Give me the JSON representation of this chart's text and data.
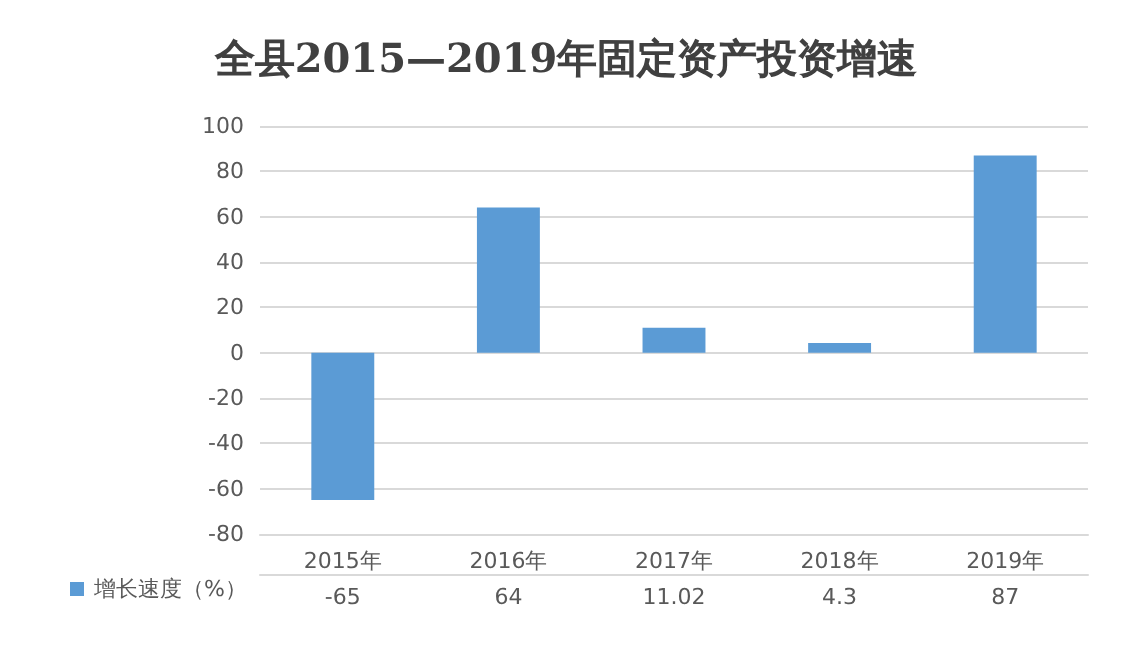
{
  "chart_data": {
    "type": "bar",
    "title": "全县2015—2019年固定资产投资增速",
    "categories": [
      "2015年",
      "2016年",
      "2017年",
      "2018年",
      "2019年"
    ],
    "series": [
      {
        "name": "增长速度（%）",
        "color": "#5b9bd5",
        "values": [
          -65,
          64,
          11.02,
          4.3,
          87
        ]
      }
    ],
    "ylim": [
      -80,
      100
    ],
    "yticks": [
      -80,
      -60,
      -40,
      -20,
      0,
      20,
      40,
      60,
      80,
      100
    ],
    "grid": "y",
    "data_labels": true,
    "legend": "bottom left"
  }
}
